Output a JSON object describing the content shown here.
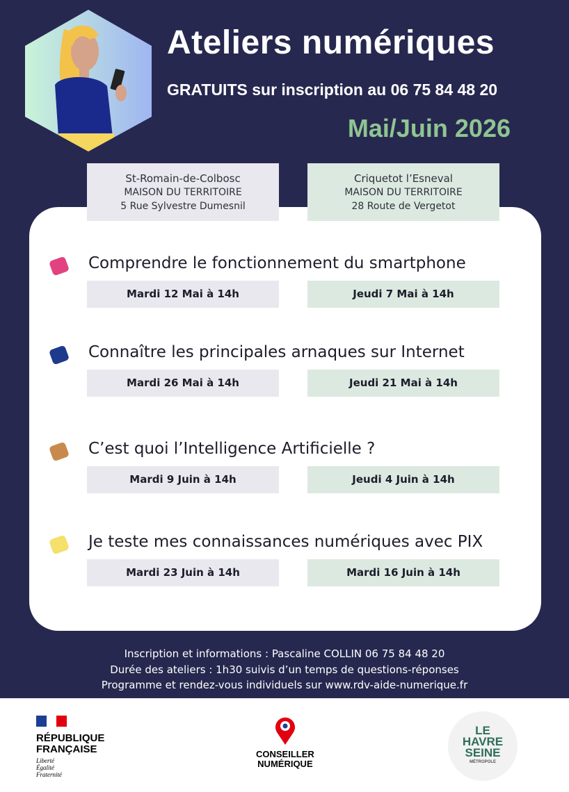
{
  "header": {
    "title": "Ateliers numériques",
    "subtitle": "GRATUITS sur inscription au 06 75 84 48 20",
    "period": "Mai/Juin 2026"
  },
  "locations": [
    {
      "town": "St-Romain-de-Colbosc",
      "building": "MAISON DU TERRITOIRE",
      "address": "5 Rue Sylvestre Dumesnil"
    },
    {
      "town": "Criquetot l’Esneval",
      "building": "MAISON DU TERRITOIRE",
      "address": "28 Route de Vergetot"
    }
  ],
  "workshops": [
    {
      "title": "Comprendre le fonctionnement du smartphone",
      "sessions": [
        "Mardi 12 Mai à 14h",
        "Jeudi 7 Mai à 14h"
      ]
    },
    {
      "title": "Connaître les principales arnaques sur Internet",
      "sessions": [
        "Mardi 26 Mai à 14h",
        "Jeudi 21 Mai à 14h"
      ]
    },
    {
      "title": "C’est quoi l’Intelligence Artificielle ?",
      "sessions": [
        "Mardi 9 Juin à 14h",
        "Jeudi 4 Juin à 14h"
      ]
    },
    {
      "title": "Je teste mes connaissances numériques avec PIX",
      "sessions": [
        "Mardi 23 Juin à 14h",
        "Mardi 16 Juin à 14h"
      ]
    }
  ],
  "footer": [
    "Inscription et informations : Pascaline COLLIN 06 75 84 48 20",
    "Durée des ateliers : 1h30 suivis d’un temps de questions-réponses",
    "Programme et rendez-vous individuels sur www.rdv-aide-numerique.fr"
  ],
  "logos": {
    "republique": [
      "RÉPUBLIQUE",
      "FRANÇAISE"
    ],
    "motto": [
      "Liberté",
      "Égalité",
      "Fraternité"
    ],
    "conseiller": [
      "CONSEILLER",
      "NUMÉRIQUE"
    ],
    "havre": [
      "LE",
      "HAVRE",
      "SEINE",
      "MÉTROPOLE"
    ]
  }
}
